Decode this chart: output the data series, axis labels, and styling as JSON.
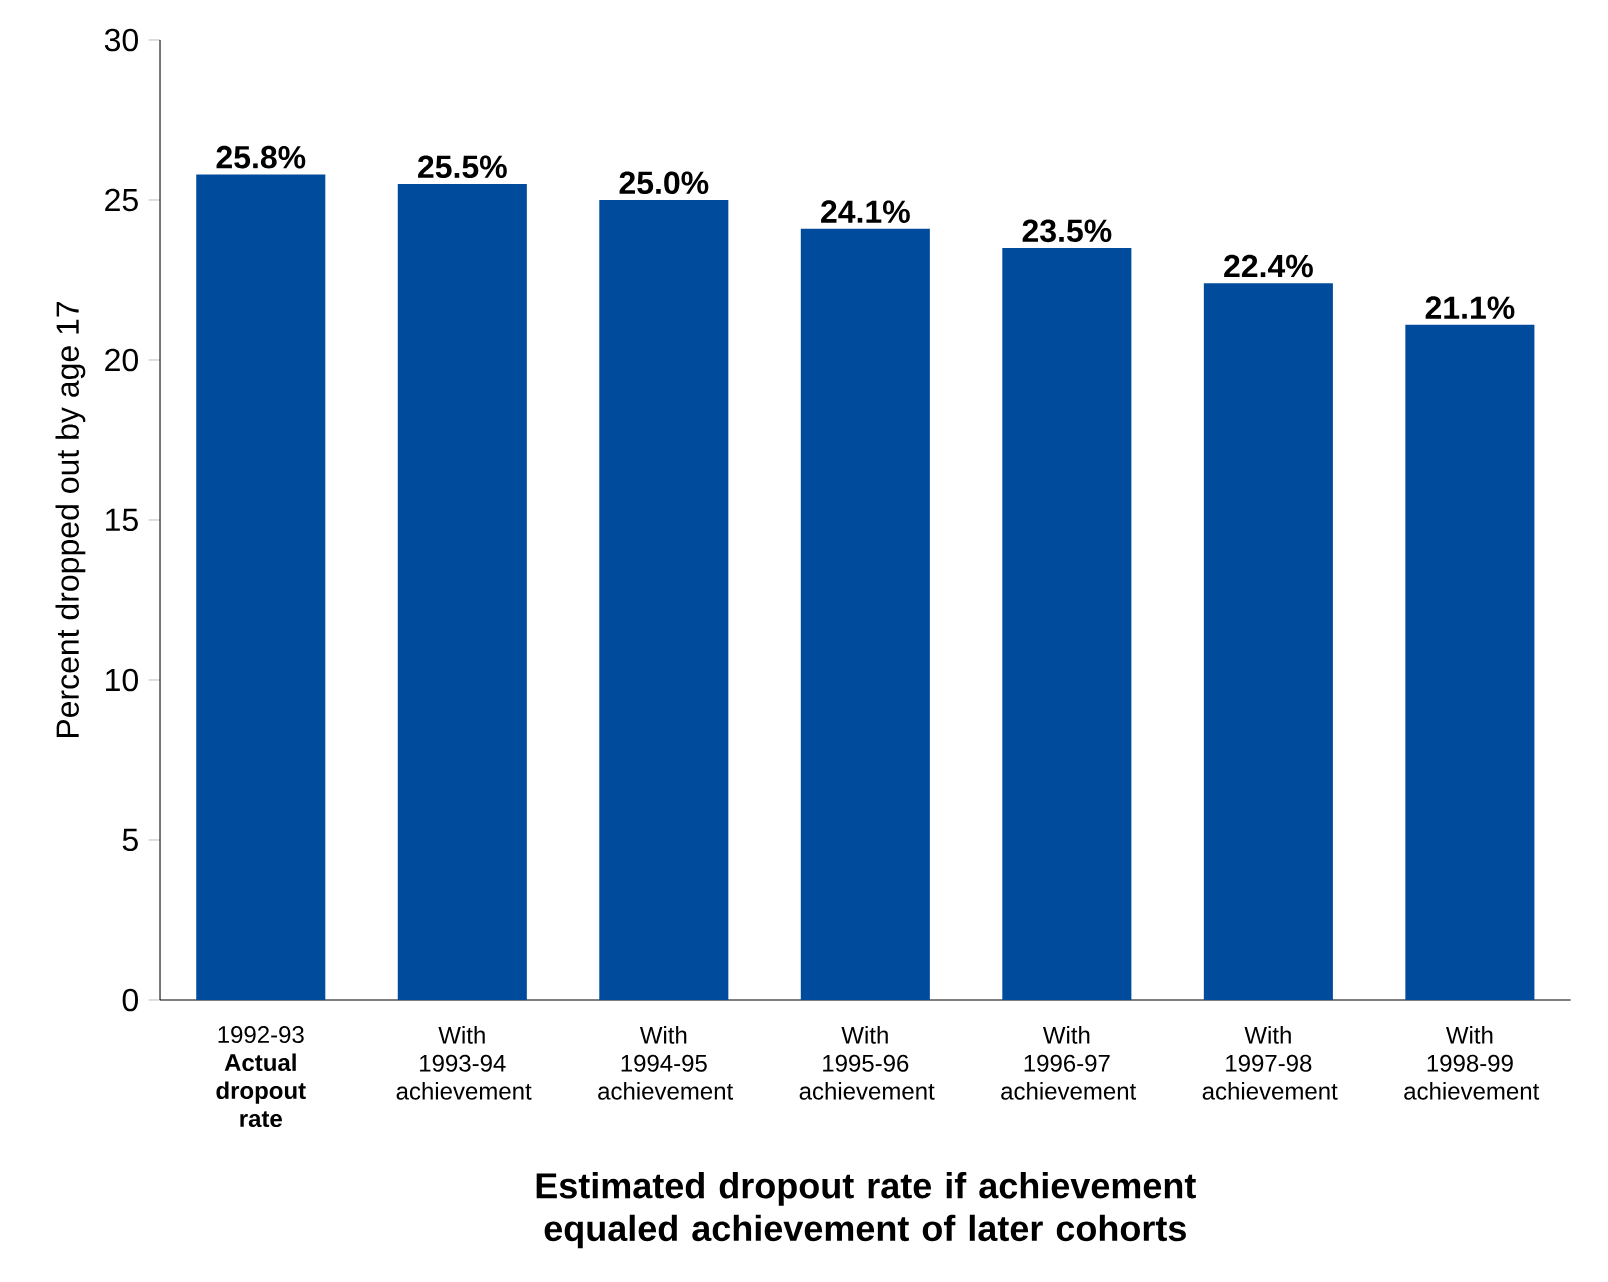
{
  "chart_data": {
    "type": "bar",
    "xlabel": "Estimated dropout rate if achievement equaled achievement of later cohorts",
    "ylabel": "Percent dropped out by age 17",
    "categories": [
      "1992-93 **Actual dropout rate**",
      "With 1993-94 achievement",
      "With 1994-95 achievement",
      "With 1995-96 achievement",
      "With 1996-97 achievement",
      "With 1997-98 achievement",
      "With 1998-99 achievement"
    ],
    "values": [
      25.8,
      25.5,
      25.0,
      24.1,
      23.5,
      22.4,
      21.1
    ],
    "value_labels": [
      "25.8%",
      "25.5%",
      "25.0%",
      "24.1%",
      "23.5%",
      "22.4%",
      "21.1%"
    ],
    "color": "#004b9b",
    "ylim": [
      0,
      30
    ],
    "yticks": [
      0,
      5,
      10,
      15,
      20,
      25,
      30
    ],
    "grid": false
  }
}
